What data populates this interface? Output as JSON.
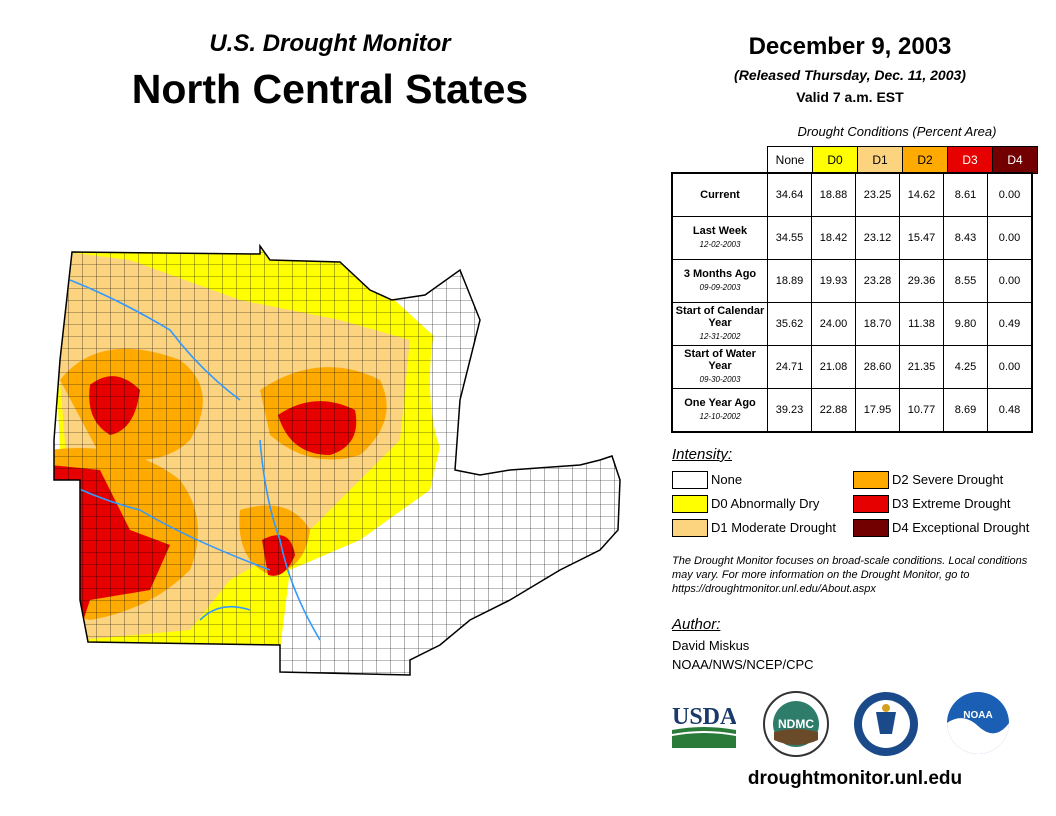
{
  "header": {
    "subtitle": "U.S. Drought Monitor",
    "title": "North Central States",
    "date": "December 9, 2003",
    "released": "(Released Thursday, Dec. 11, 2003)",
    "valid": "Valid 7 a.m. EST"
  },
  "conditions": {
    "caption": "Drought Conditions (Percent Area)",
    "columns": [
      "None",
      "D0",
      "D1",
      "D2",
      "D3",
      "D4"
    ],
    "column_colors": [
      "#ffffff",
      "#ffff00",
      "#fcd37f",
      "#ffaa00",
      "#e60000",
      "#730000"
    ],
    "rows": [
      {
        "label": "Current",
        "date": "",
        "values": [
          "34.64",
          "18.88",
          "23.25",
          "14.62",
          "8.61",
          "0.00"
        ]
      },
      {
        "label": "Last Week",
        "date": "12-02-2003",
        "values": [
          "34.55",
          "18.42",
          "23.12",
          "15.47",
          "8.43",
          "0.00"
        ]
      },
      {
        "label": "3 Months Ago",
        "date": "09-09-2003",
        "values": [
          "18.89",
          "19.93",
          "23.28",
          "29.36",
          "8.55",
          "0.00"
        ]
      },
      {
        "label": "Start of Calendar Year",
        "date": "12-31-2002",
        "values": [
          "35.62",
          "24.00",
          "18.70",
          "11.38",
          "9.80",
          "0.49"
        ]
      },
      {
        "label": "Start of Water Year",
        "date": "09-30-2003",
        "values": [
          "24.71",
          "21.08",
          "28.60",
          "21.35",
          "4.25",
          "0.00"
        ]
      },
      {
        "label": "One Year Ago",
        "date": "12-10-2002",
        "values": [
          "39.23",
          "22.88",
          "17.95",
          "10.77",
          "8.69",
          "0.48"
        ]
      }
    ]
  },
  "legend": {
    "title": "Intensity:",
    "items": [
      {
        "label": "None",
        "color": "#ffffff"
      },
      {
        "label": "D0 Abnormally Dry",
        "color": "#ffff00"
      },
      {
        "label": "D1 Moderate Drought",
        "color": "#fcd37f"
      },
      {
        "label": "D2 Severe Drought",
        "color": "#ffaa00"
      },
      {
        "label": "D3 Extreme Drought",
        "color": "#e60000"
      },
      {
        "label": "D4 Exceptional Drought",
        "color": "#730000"
      }
    ]
  },
  "note": "The Drought Monitor focuses on broad-scale conditions. Local conditions may vary. For more information on the Drought Monitor, go to https://droughtmonitor.unl.edu/About.aspx",
  "author": {
    "title": "Author:",
    "name": "David Miskus",
    "org": "NOAA/NWS/NCEP/CPC"
  },
  "logos": {
    "usda": "USDA",
    "ndmc": "NDMC",
    "noaa": "NOAA"
  },
  "website": "droughtmonitor.unl.edu",
  "map_colors": {
    "none": "#ffffff",
    "d0": "#ffff00",
    "d1": "#fcd37f",
    "d2": "#ffaa00",
    "d3": "#e60000",
    "water": "#3399ff",
    "lake": "#ffffff"
  }
}
